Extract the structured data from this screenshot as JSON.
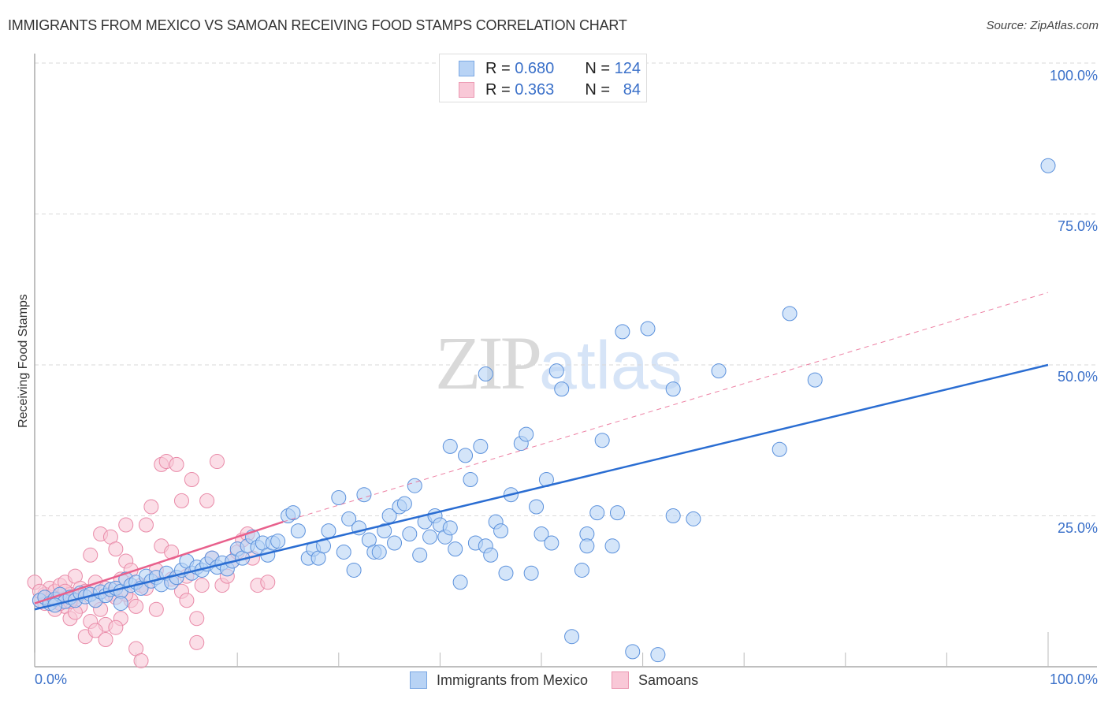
{
  "header": {
    "title": "IMMIGRANTS FROM MEXICO VS SAMOAN RECEIVING FOOD STAMPS CORRELATION CHART",
    "source": "Source: ZipAtlas.com"
  },
  "watermark": {
    "zip": "ZIP",
    "atlas": "atlas"
  },
  "axes": {
    "ylabel": "Receiving Food Stamps",
    "yticks": [
      "100.0%",
      "75.0%",
      "50.0%",
      "25.0%"
    ],
    "xticks": [
      "0.0%",
      "100.0%"
    ]
  },
  "legend_top": {
    "rows": [
      {
        "r_label": "R =",
        "r_value": "0.680",
        "n_label": "N =",
        "n_value": "124",
        "color": "#b8d3f5"
      },
      {
        "r_label": "R =",
        "r_value": "0.363",
        "n_label": "N =",
        "n_value": "84",
        "color": "#f9c8d7"
      }
    ]
  },
  "legend_bottom": {
    "items": [
      {
        "label": "Immigrants from Mexico",
        "color": "#b8d3f5"
      },
      {
        "label": "Samoans",
        "color": "#f9c8d7"
      }
    ]
  },
  "colors": {
    "blue_fill": "#b8d3f5",
    "blue_stroke": "#5b91dc",
    "blue_line": "#2a6dd2",
    "pink_fill": "#f9c8d7",
    "pink_stroke": "#e98aa8",
    "pink_line": "#e8608c",
    "tick_text": "#3a70c9",
    "grid": "#d9d9d9"
  },
  "chart_data": {
    "type": "scatter",
    "title": "IMMIGRANTS FROM MEXICO VS SAMOAN RECEIVING FOOD STAMPS CORRELATION CHART",
    "xlabel": "Immigrants from Mexico",
    "ylabel": "Receiving Food Stamps",
    "xlim": [
      0,
      100
    ],
    "ylim": [
      0,
      100
    ],
    "grid": true,
    "legend_position": "bottom",
    "series": [
      {
        "name": "Immigrants from Mexico",
        "r": 0.68,
        "n": 124,
        "trend": {
          "x": [
            0,
            100
          ],
          "y": [
            9.5,
            50.0
          ]
        },
        "points": [
          [
            0.5,
            11.0
          ],
          [
            1.0,
            11.5
          ],
          [
            1.5,
            10.5
          ],
          [
            2.0,
            11.2
          ],
          [
            2.5,
            12.0
          ],
          [
            3.0,
            10.8
          ],
          [
            3.5,
            11.5
          ],
          [
            4.0,
            11.0
          ],
          [
            4.5,
            12.2
          ],
          [
            5.0,
            11.6
          ],
          [
            5.5,
            12.0
          ],
          [
            6.0,
            11.0
          ],
          [
            6.5,
            12.4
          ],
          [
            7.0,
            11.8
          ],
          [
            7.5,
            12.8
          ],
          [
            8.0,
            13.0
          ],
          [
            8.5,
            12.5
          ],
          [
            9.0,
            14.5
          ],
          [
            9.5,
            13.5
          ],
          [
            10.0,
            14.0
          ],
          [
            10.5,
            13.0
          ],
          [
            11.0,
            15.0
          ],
          [
            11.5,
            14.2
          ],
          [
            12.0,
            14.8
          ],
          [
            12.5,
            13.6
          ],
          [
            13.0,
            15.5
          ],
          [
            13.5,
            14.0
          ],
          [
            14.0,
            14.8
          ],
          [
            14.5,
            16.0
          ],
          [
            15.0,
            17.5
          ],
          [
            15.5,
            15.5
          ],
          [
            16.0,
            16.5
          ],
          [
            16.5,
            16.0
          ],
          [
            17.0,
            17.0
          ],
          [
            17.5,
            18.0
          ],
          [
            18.0,
            16.5
          ],
          [
            18.5,
            17.2
          ],
          [
            19.0,
            16.2
          ],
          [
            19.5,
            17.5
          ],
          [
            20.0,
            19.5
          ],
          [
            20.5,
            18.0
          ],
          [
            21.0,
            20.0
          ],
          [
            21.5,
            21.5
          ],
          [
            22.0,
            19.8
          ],
          [
            22.5,
            20.5
          ],
          [
            23.0,
            18.5
          ],
          [
            23.5,
            20.5
          ],
          [
            24.0,
            20.8
          ],
          [
            25.0,
            25.0
          ],
          [
            25.5,
            25.5
          ],
          [
            26.0,
            22.5
          ],
          [
            27.0,
            18.0
          ],
          [
            27.5,
            19.5
          ],
          [
            28.0,
            18.0
          ],
          [
            28.5,
            20.0
          ],
          [
            29.0,
            22.5
          ],
          [
            30.0,
            28.0
          ],
          [
            30.5,
            19.0
          ],
          [
            31.0,
            24.5
          ],
          [
            31.5,
            16.0
          ],
          [
            32.0,
            23.0
          ],
          [
            32.5,
            28.5
          ],
          [
            33.0,
            21.0
          ],
          [
            33.5,
            19.0
          ],
          [
            34.0,
            19.0
          ],
          [
            34.5,
            22.5
          ],
          [
            35.0,
            25.0
          ],
          [
            35.5,
            20.5
          ],
          [
            36.0,
            26.5
          ],
          [
            36.5,
            27.0
          ],
          [
            37.0,
            22.0
          ],
          [
            37.5,
            30.0
          ],
          [
            38.0,
            18.5
          ],
          [
            38.5,
            24.0
          ],
          [
            39.0,
            21.5
          ],
          [
            39.5,
            25.0
          ],
          [
            40.0,
            23.5
          ],
          [
            40.5,
            21.5
          ],
          [
            41.0,
            23.0
          ],
          [
            41.5,
            19.5
          ],
          [
            41.0,
            36.5
          ],
          [
            42.0,
            14.0
          ],
          [
            42.5,
            35.0
          ],
          [
            43.0,
            31.0
          ],
          [
            43.5,
            20.5
          ],
          [
            44.0,
            36.5
          ],
          [
            44.5,
            48.5
          ],
          [
            44.5,
            20.0
          ],
          [
            45.0,
            18.5
          ],
          [
            45.5,
            24.0
          ],
          [
            46.0,
            22.5
          ],
          [
            46.5,
            15.5
          ],
          [
            47.0,
            28.5
          ],
          [
            48.0,
            37.0
          ],
          [
            48.5,
            38.5
          ],
          [
            49.0,
            15.5
          ],
          [
            49.5,
            26.5
          ],
          [
            50.0,
            22.0
          ],
          [
            50.5,
            31.0
          ],
          [
            51.0,
            20.5
          ],
          [
            51.5,
            49.0
          ],
          [
            52.0,
            46.0
          ],
          [
            53.0,
            5.0
          ],
          [
            54.0,
            16.0
          ],
          [
            54.5,
            22.0
          ],
          [
            54.5,
            20.0
          ],
          [
            55.5,
            25.5
          ],
          [
            56.0,
            37.5
          ],
          [
            57.0,
            20.0
          ],
          [
            57.5,
            25.5
          ],
          [
            58.0,
            55.5
          ],
          [
            59.0,
            2.5
          ],
          [
            60.5,
            56.0
          ],
          [
            61.5,
            2.0
          ],
          [
            63.0,
            25.0
          ],
          [
            63.0,
            46.0
          ],
          [
            65.0,
            24.5
          ],
          [
            67.5,
            49.0
          ],
          [
            73.5,
            36.0
          ],
          [
            74.5,
            58.5
          ],
          [
            77.0,
            47.5
          ],
          [
            100.0,
            83.0
          ],
          [
            8.5,
            10.5
          ],
          [
            2.0,
            10.2
          ]
        ]
      },
      {
        "name": "Samoans",
        "r": 0.363,
        "n": 84,
        "trend": {
          "x": [
            0,
            24.5
          ],
          "y": [
            10.5,
            24.0
          ]
        },
        "trend_extended": {
          "x": [
            24.5,
            100
          ],
          "y": [
            24.0,
            62.0
          ],
          "style": "dashed"
        },
        "points": [
          [
            0.0,
            14.0
          ],
          [
            0.5,
            11.0
          ],
          [
            1.0,
            12.0
          ],
          [
            1.0,
            10.5
          ],
          [
            1.5,
            11.5
          ],
          [
            1.5,
            13.0
          ],
          [
            2.0,
            10.8
          ],
          [
            2.0,
            12.5
          ],
          [
            2.5,
            11.2
          ],
          [
            2.5,
            13.5
          ],
          [
            3.0,
            10.0
          ],
          [
            3.0,
            14.0
          ],
          [
            3.5,
            12.0
          ],
          [
            3.5,
            8.0
          ],
          [
            4.0,
            11.5
          ],
          [
            4.0,
            15.0
          ],
          [
            4.5,
            13.0
          ],
          [
            4.5,
            10.0
          ],
          [
            5.0,
            12.5
          ],
          [
            5.0,
            5.0
          ],
          [
            5.5,
            7.5
          ],
          [
            5.5,
            18.5
          ],
          [
            6.0,
            14.0
          ],
          [
            6.0,
            11.0
          ],
          [
            6.5,
            22.0
          ],
          [
            6.5,
            9.5
          ],
          [
            7.0,
            13.0
          ],
          [
            7.0,
            7.0
          ],
          [
            7.5,
            12.0
          ],
          [
            7.5,
            21.5
          ],
          [
            8.0,
            11.5
          ],
          [
            8.0,
            19.5
          ],
          [
            8.5,
            14.5
          ],
          [
            8.5,
            8.0
          ],
          [
            9.0,
            23.5
          ],
          [
            9.0,
            17.5
          ],
          [
            9.5,
            11.0
          ],
          [
            9.5,
            16.0
          ],
          [
            10.0,
            10.0
          ],
          [
            10.0,
            3.0
          ],
          [
            10.5,
            13.5
          ],
          [
            10.5,
            1.0
          ],
          [
            11.0,
            23.5
          ],
          [
            11.0,
            13.0
          ],
          [
            11.5,
            26.5
          ],
          [
            12.0,
            16.0
          ],
          [
            12.0,
            9.5
          ],
          [
            12.5,
            20.0
          ],
          [
            12.5,
            33.5
          ],
          [
            13.0,
            34.0
          ],
          [
            13.5,
            19.0
          ],
          [
            13.5,
            14.5
          ],
          [
            14.0,
            33.5
          ],
          [
            14.5,
            27.5
          ],
          [
            14.5,
            12.5
          ],
          [
            15.0,
            15.0
          ],
          [
            15.0,
            11.0
          ],
          [
            15.5,
            31.0
          ],
          [
            16.0,
            8.0
          ],
          [
            16.0,
            4.0
          ],
          [
            16.5,
            13.5
          ],
          [
            17.0,
            27.5
          ],
          [
            17.5,
            18.0
          ],
          [
            18.0,
            34.0
          ],
          [
            18.5,
            13.5
          ],
          [
            19.0,
            15.0
          ],
          [
            19.5,
            17.5
          ],
          [
            20.0,
            19.0
          ],
          [
            20.5,
            21.0
          ],
          [
            21.0,
            22.0
          ],
          [
            21.5,
            18.0
          ],
          [
            22.0,
            13.5
          ],
          [
            23.0,
            14.0
          ],
          [
            2.0,
            9.5
          ],
          [
            3.0,
            12.5
          ],
          [
            4.0,
            9.0
          ],
          [
            6.0,
            6.0
          ],
          [
            7.0,
            4.5
          ],
          [
            8.0,
            6.5
          ],
          [
            9.0,
            12.0
          ],
          [
            1.0,
            11.5
          ],
          [
            2.5,
            10.5
          ],
          [
            3.5,
            10.8
          ],
          [
            0.5,
            12.5
          ]
        ]
      }
    ]
  }
}
